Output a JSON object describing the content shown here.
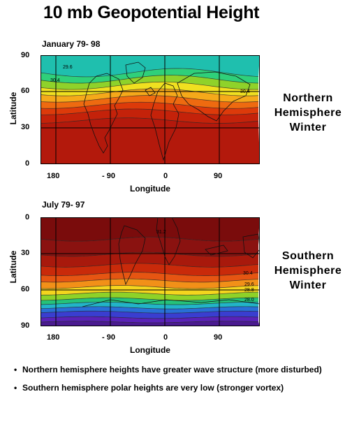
{
  "title": "10 mb Geopotential Height",
  "chart_data": [
    {
      "type": "heatmap",
      "panel_label": "January 79- 98",
      "xlabel": "Longitude",
      "ylabel": "Latitude",
      "x_ticks": [
        "180",
        "- 90",
        "0",
        "90"
      ],
      "x_tick_values": [
        180,
        -90,
        0,
        90
      ],
      "y_ticks": [
        "90",
        "60",
        "30",
        "0"
      ],
      "y_tick_values": [
        90,
        60,
        30,
        0
      ],
      "ylim": [
        0,
        90
      ],
      "grid": true,
      "contour_labels": [
        "29.6",
        "30.4",
        "30.4"
      ],
      "bands": [
        {
          "color": "#1fbfae"
        },
        {
          "color": "#2fd07a"
        },
        {
          "color": "#8fd22a"
        },
        {
          "color": "#f0e020"
        },
        {
          "color": "#f5a91a"
        },
        {
          "color": "#ee6a10"
        },
        {
          "color": "#dd3a0a"
        },
        {
          "color": "#c4220a"
        },
        {
          "color": "#b3190c"
        }
      ],
      "side_label": [
        "Northern",
        "Hemisphere",
        "Winter"
      ]
    },
    {
      "type": "heatmap",
      "panel_label": "July 79- 97",
      "xlabel": "Longitude",
      "ylabel": "Latitude",
      "x_ticks": [
        "180",
        "- 90",
        "0",
        "90"
      ],
      "x_tick_values": [
        180,
        -90,
        0,
        90
      ],
      "y_ticks": [
        "0",
        "30",
        "60",
        "90"
      ],
      "y_tick_values": [
        0,
        30,
        60,
        90
      ],
      "ylim": [
        90,
        0
      ],
      "grid": true,
      "contour_labels": [
        "31.2",
        "30.4",
        "29.6",
        "28.8",
        "28.0"
      ],
      "bands": [
        {
          "color": "#7a0c0c"
        },
        {
          "color": "#8a1210"
        },
        {
          "color": "#a8190c"
        },
        {
          "color": "#c92a0a"
        },
        {
          "color": "#e65512"
        },
        {
          "color": "#f29018"
        },
        {
          "color": "#f4d51e"
        },
        {
          "color": "#8ed228"
        },
        {
          "color": "#25c27a"
        },
        {
          "color": "#22b4c8"
        },
        {
          "color": "#2870d6"
        },
        {
          "color": "#3a3ed0"
        },
        {
          "color": "#5a22b8"
        },
        {
          "color": "#4a1a90"
        }
      ],
      "side_label": [
        "Southern",
        "Hemisphere",
        "Winter"
      ]
    }
  ],
  "bullets": [
    "Northern hemisphere heights have greater wave structure (more disturbed)",
    "Southern hemisphere polar heights are very low (stronger vortex)"
  ]
}
